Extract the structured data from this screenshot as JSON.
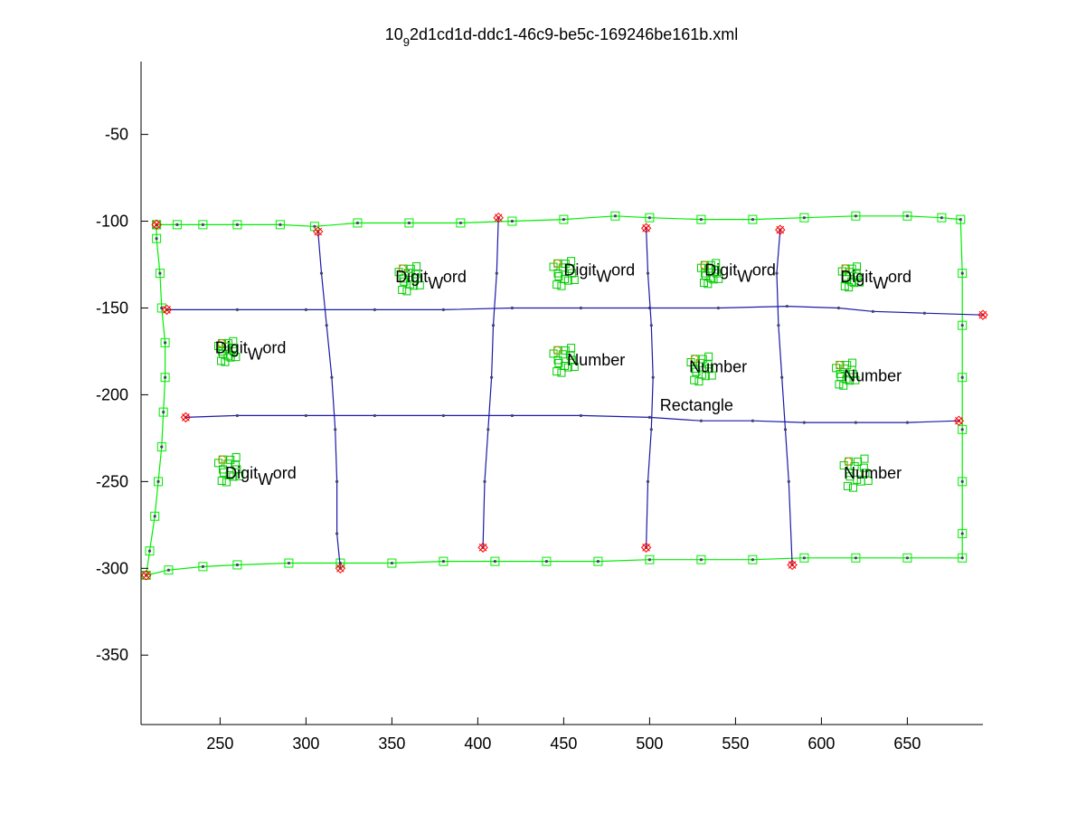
{
  "chart_data": {
    "type": "scatter",
    "title_main": "10",
    "title_sub": "9",
    "title_rest": "2d1cd1d-ddc1-46c9-be5c-169246be161b.xml",
    "xlim": [
      204,
      694
    ],
    "ylim": [
      -390,
      -8
    ],
    "y_reversed_sign": true,
    "x_ticks": [
      250,
      300,
      350,
      400,
      450,
      500,
      550,
      600,
      650
    ],
    "y_ticks": [
      -50,
      -100,
      -150,
      -200,
      -250,
      -300,
      -350
    ],
    "colors": {
      "stroke_green": "#00ee00",
      "node_green": "#00cc00",
      "line_blue": "#1a1aa8",
      "endpoint_red": "#ff0000",
      "dot_gray": "#444466"
    },
    "strokes": [
      {
        "name": "outer-rectangle",
        "color": "green",
        "markers": "square",
        "points": [
          [
            213,
            -102
          ],
          [
            225,
            -102
          ],
          [
            240,
            -102
          ],
          [
            260,
            -102
          ],
          [
            285,
            -102
          ],
          [
            305,
            -103
          ],
          [
            330,
            -101
          ],
          [
            360,
            -101
          ],
          [
            390,
            -101
          ],
          [
            420,
            -100
          ],
          [
            450,
            -99
          ],
          [
            480,
            -97
          ],
          [
            500,
            -98
          ],
          [
            530,
            -99
          ],
          [
            560,
            -99
          ],
          [
            590,
            -98
          ],
          [
            620,
            -97
          ],
          [
            650,
            -97
          ],
          [
            670,
            -98
          ],
          [
            681,
            -99
          ],
          [
            682,
            -130
          ],
          [
            682,
            -160
          ],
          [
            682,
            -190
          ],
          [
            682,
            -220
          ],
          [
            682,
            -250
          ],
          [
            682,
            -280
          ],
          [
            682,
            -294
          ],
          [
            650,
            -294
          ],
          [
            620,
            -294
          ],
          [
            590,
            -294
          ],
          [
            560,
            -295
          ],
          [
            530,
            -295
          ],
          [
            500,
            -295
          ],
          [
            470,
            -296
          ],
          [
            440,
            -296
          ],
          [
            410,
            -296
          ],
          [
            380,
            -296
          ],
          [
            350,
            -297
          ],
          [
            320,
            -297
          ],
          [
            290,
            -297
          ],
          [
            260,
            -298
          ],
          [
            240,
            -299
          ],
          [
            220,
            -301
          ],
          [
            207,
            -304
          ],
          [
            209,
            -290
          ],
          [
            212,
            -270
          ],
          [
            214,
            -250
          ],
          [
            216,
            -230
          ],
          [
            217,
            -210
          ],
          [
            218,
            -190
          ],
          [
            218,
            -170
          ],
          [
            216,
            -150
          ],
          [
            215,
            -130
          ],
          [
            213,
            -110
          ],
          [
            213,
            -102
          ]
        ]
      },
      {
        "name": "h-line-1",
        "color": "blue",
        "points": [
          [
            219,
            -151
          ],
          [
            260,
            -151
          ],
          [
            300,
            -151
          ],
          [
            340,
            -151
          ],
          [
            380,
            -151
          ],
          [
            420,
            -150
          ],
          [
            460,
            -150
          ],
          [
            500,
            -150
          ],
          [
            540,
            -150
          ],
          [
            580,
            -149
          ],
          [
            610,
            -150
          ],
          [
            630,
            -152
          ],
          [
            660,
            -153
          ],
          [
            694,
            -154
          ]
        ]
      },
      {
        "name": "h-line-2",
        "color": "blue",
        "points": [
          [
            230,
            -213
          ],
          [
            260,
            -212
          ],
          [
            300,
            -212
          ],
          [
            340,
            -212
          ],
          [
            380,
            -212
          ],
          [
            420,
            -212
          ],
          [
            460,
            -212
          ],
          [
            500,
            -213
          ],
          [
            530,
            -215
          ],
          [
            560,
            -215
          ],
          [
            590,
            -216
          ],
          [
            620,
            -216
          ],
          [
            650,
            -216
          ],
          [
            680,
            -215
          ]
        ]
      },
      {
        "name": "v-line-1",
        "color": "blue",
        "points": [
          [
            307,
            -106
          ],
          [
            309,
            -130
          ],
          [
            312,
            -160
          ],
          [
            315,
            -190
          ],
          [
            317,
            -220
          ],
          [
            318,
            -250
          ],
          [
            318,
            -280
          ],
          [
            320,
            -300
          ]
        ]
      },
      {
        "name": "v-line-2",
        "color": "blue",
        "points": [
          [
            412,
            -98
          ],
          [
            411,
            -130
          ],
          [
            409,
            -160
          ],
          [
            408,
            -190
          ],
          [
            406,
            -220
          ],
          [
            404,
            -250
          ],
          [
            403,
            -288
          ]
        ]
      },
      {
        "name": "v-line-3",
        "color": "blue",
        "points": [
          [
            498,
            -104
          ],
          [
            499,
            -130
          ],
          [
            501,
            -160
          ],
          [
            502,
            -190
          ],
          [
            501,
            -220
          ],
          [
            499,
            -250
          ],
          [
            498,
            -288
          ]
        ]
      },
      {
        "name": "v-line-4",
        "color": "blue",
        "points": [
          [
            576,
            -105
          ],
          [
            574,
            -130
          ],
          [
            575,
            -160
          ],
          [
            577,
            -190
          ],
          [
            579,
            -220
          ],
          [
            581,
            -250
          ],
          [
            583,
            -298
          ]
        ]
      }
    ],
    "endpoints": [
      [
        213,
        -102
      ],
      [
        219,
        -151
      ],
      [
        230,
        -213
      ],
      [
        307,
        -106
      ],
      [
        320,
        -300
      ],
      [
        412,
        -98
      ],
      [
        403,
        -288
      ],
      [
        498,
        -104
      ],
      [
        498,
        -288
      ],
      [
        576,
        -105
      ],
      [
        583,
        -298
      ],
      [
        694,
        -154
      ],
      [
        680,
        -215
      ],
      [
        207,
        -304
      ]
    ],
    "symbols": [
      {
        "name": "symbol-1",
        "x": 360,
        "y": -133,
        "r": 12
      },
      {
        "name": "symbol-2",
        "x": 450,
        "y": -130,
        "r": 12
      },
      {
        "name": "symbol-3",
        "x": 535,
        "y": -130,
        "r": 10
      },
      {
        "name": "symbol-4",
        "x": 617,
        "y": -132,
        "r": 10
      },
      {
        "name": "symbol-5",
        "x": 254,
        "y": -175,
        "r": 10
      },
      {
        "name": "symbol-6",
        "x": 450,
        "y": -180,
        "r": 12
      },
      {
        "name": "symbol-7",
        "x": 530,
        "y": -185,
        "r": 12
      },
      {
        "name": "symbol-8",
        "x": 614,
        "y": -188,
        "r": 11
      },
      {
        "name": "symbol-9",
        "x": 255,
        "y": -243,
        "r": 12
      },
      {
        "name": "symbol-10",
        "x": 620,
        "y": -245,
        "r": 14
      }
    ],
    "annotations": [
      {
        "name": "annotation-digitword-1",
        "word": "Digit",
        "sub": "W",
        "rest": "ord",
        "x": 352,
        "y": -132
      },
      {
        "name": "annotation-digitword-2",
        "word": "Digit",
        "sub": "W",
        "rest": "ord",
        "x": 450,
        "y": -128
      },
      {
        "name": "annotation-digitword-3",
        "word": "Digit",
        "sub": "W",
        "rest": "ord",
        "x": 532,
        "y": -128
      },
      {
        "name": "annotation-digitword-4",
        "word": "Digit",
        "sub": "W",
        "rest": "ord",
        "x": 611,
        "y": -132
      },
      {
        "name": "annotation-digitword-5",
        "word": "Digit",
        "sub": "W",
        "rest": "ord",
        "x": 247,
        "y": -173
      },
      {
        "name": "annotation-number-1",
        "word": "Number",
        "sub": "",
        "rest": "",
        "x": 452,
        "y": -180
      },
      {
        "name": "annotation-number-2",
        "word": "Number",
        "sub": "",
        "rest": "",
        "x": 523,
        "y": -184
      },
      {
        "name": "annotation-number-3",
        "word": "Number",
        "sub": "",
        "rest": "",
        "x": 613,
        "y": -189
      },
      {
        "name": "annotation-rectangle",
        "word": "Rectangle",
        "sub": "",
        "rest": "",
        "x": 506,
        "y": -206
      },
      {
        "name": "annotation-digitword-6",
        "word": "Digit",
        "sub": "W",
        "rest": "ord",
        "x": 253,
        "y": -245
      },
      {
        "name": "annotation-number-4",
        "word": "Number",
        "sub": "",
        "rest": "",
        "x": 613,
        "y": -245
      }
    ]
  }
}
